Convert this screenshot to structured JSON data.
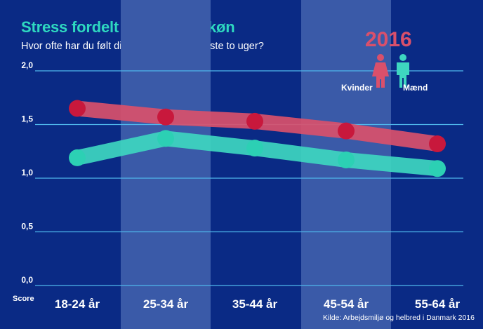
{
  "header": {
    "title": "Stress fordelt på alder og køn",
    "subtitle": "Hvor ofte har du følt dig stresset i de seneste to uger?",
    "year": "2016"
  },
  "legend": {
    "female_label": "Kvinder",
    "male_label": "Mænd"
  },
  "axis_caption": "Score",
  "source": "Kilde: Arbejdsmiljø og helbred i Danmark 2016",
  "colors": {
    "background": "#0a2a85",
    "band": "#3a5aa8",
    "female": "#d9506b",
    "female_dot": "#c8183c",
    "male": "#3ed6c0",
    "male_dot": "#2cd0b4",
    "title": "#2ed8c0",
    "year": "#d9506b",
    "grid": "#4fb8ec"
  },
  "chart_data": {
    "type": "line",
    "title": "Stress fordelt på alder og køn",
    "subtitle": "Hvor ofte har du følt dig stresset i de seneste to uger?",
    "categories": [
      "18-24 år",
      "25-34 år",
      "35-44 år",
      "45-54 år",
      "55-64 år"
    ],
    "series": [
      {
        "name": "Kvinder",
        "values": [
          1.65,
          1.57,
          1.53,
          1.44,
          1.32
        ]
      },
      {
        "name": "Mænd",
        "values": [
          1.19,
          1.37,
          1.28,
          1.17,
          1.09
        ]
      }
    ],
    "yticks": [
      "0,0",
      "0,5",
      "1,0",
      "1,5",
      "2,0"
    ],
    "ylim": [
      0,
      2
    ],
    "ylabel": "Score",
    "grid": true,
    "legend_position": "top-right"
  }
}
